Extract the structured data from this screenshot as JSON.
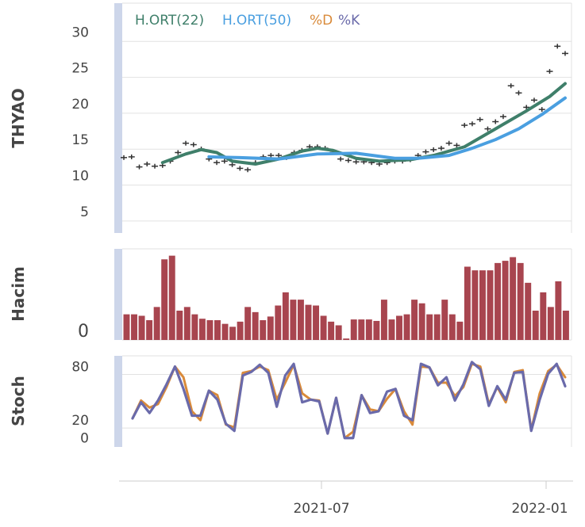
{
  "chart_data": {
    "type": "line",
    "colors": {
      "ma22": "#3f7f6a",
      "ma50": "#4a9fe0",
      "d": "#d98a3a",
      "k": "#6a6aaa",
      "volume": "#a8454f",
      "ohlc": "#333333",
      "scrollbar": "#cdd6ea"
    },
    "x_ticks": [
      "2021-07",
      "2022-01"
    ],
    "price_panel": {
      "ylabel": "THYAO",
      "ylim": [
        2,
        34
      ],
      "y_ticks": [
        5,
        10,
        15,
        20,
        25,
        30
      ],
      "legend": [
        {
          "label": "H.ORT(22)",
          "color": "#3f7f6a"
        },
        {
          "label": "H.ORT(50)",
          "color": "#4a9fe0"
        },
        {
          "label": "%D",
          "color": "#d98a3a"
        },
        {
          "label": "%K",
          "color": "#6a6aaa"
        }
      ],
      "ohlc": [
        {
          "x": 0,
          "y": 12.5
        },
        {
          "x": 1,
          "y": 12.6
        },
        {
          "x": 2,
          "y": 11.2
        },
        {
          "x": 3,
          "y": 11.6
        },
        {
          "x": 4,
          "y": 11.3
        },
        {
          "x": 5,
          "y": 11.4
        },
        {
          "x": 6,
          "y": 12.0
        },
        {
          "x": 7,
          "y": 13.2
        },
        {
          "x": 8,
          "y": 14.5
        },
        {
          "x": 9,
          "y": 14.3
        },
        {
          "x": 10,
          "y": 13.7
        },
        {
          "x": 11,
          "y": 12.3
        },
        {
          "x": 12,
          "y": 11.8
        },
        {
          "x": 13,
          "y": 12.0
        },
        {
          "x": 14,
          "y": 11.5
        },
        {
          "x": 15,
          "y": 11.0
        },
        {
          "x": 16,
          "y": 10.8
        },
        {
          "x": 17,
          "y": 11.8
        },
        {
          "x": 18,
          "y": 12.6
        },
        {
          "x": 19,
          "y": 12.8
        },
        {
          "x": 20,
          "y": 12.8
        },
        {
          "x": 21,
          "y": 12.5
        },
        {
          "x": 22,
          "y": 13.2
        },
        {
          "x": 23,
          "y": 13.5
        },
        {
          "x": 24,
          "y": 14.0
        },
        {
          "x": 25,
          "y": 14.0
        },
        {
          "x": 26,
          "y": 13.8
        },
        {
          "x": 27,
          "y": 13.2
        },
        {
          "x": 28,
          "y": 12.3
        },
        {
          "x": 29,
          "y": 12.1
        },
        {
          "x": 30,
          "y": 11.9
        },
        {
          "x": 31,
          "y": 11.9
        },
        {
          "x": 32,
          "y": 11.8
        },
        {
          "x": 33,
          "y": 11.6
        },
        {
          "x": 34,
          "y": 11.8
        },
        {
          "x": 35,
          "y": 12.0
        },
        {
          "x": 36,
          "y": 12.0
        },
        {
          "x": 37,
          "y": 12.2
        },
        {
          "x": 38,
          "y": 12.8
        },
        {
          "x": 39,
          "y": 13.3
        },
        {
          "x": 40,
          "y": 13.6
        },
        {
          "x": 41,
          "y": 13.8
        },
        {
          "x": 42,
          "y": 14.5
        },
        {
          "x": 43,
          "y": 14.2
        },
        {
          "x": 44,
          "y": 17.0
        },
        {
          "x": 45,
          "y": 17.2
        },
        {
          "x": 46,
          "y": 17.8
        },
        {
          "x": 47,
          "y": 16.5
        },
        {
          "x": 48,
          "y": 17.5
        },
        {
          "x": 49,
          "y": 18.2
        },
        {
          "x": 50,
          "y": 22.5
        },
        {
          "x": 51,
          "y": 21.5
        },
        {
          "x": 52,
          "y": 19.5
        },
        {
          "x": 53,
          "y": 20.5
        },
        {
          "x": 54,
          "y": 19.2
        },
        {
          "x": 55,
          "y": 24.5
        },
        {
          "x": 56,
          "y": 28.0
        },
        {
          "x": 57,
          "y": 27.0
        }
      ],
      "series": [
        {
          "name": "H.ORT(22)",
          "x": [
            5,
            8,
            10,
            12,
            14,
            17,
            20,
            23,
            25,
            27,
            30,
            33,
            37,
            40,
            44,
            48,
            52,
            55,
            57
          ],
          "values": [
            11.8,
            13.0,
            13.6,
            13.2,
            12.0,
            11.6,
            12.3,
            13.4,
            13.8,
            13.5,
            12.4,
            12.0,
            12.2,
            12.8,
            14.0,
            16.5,
            19.0,
            21.0,
            22.8
          ]
        },
        {
          "name": "H.ORT(50)",
          "x": [
            11,
            15,
            20,
            25,
            30,
            35,
            38,
            42,
            45,
            48,
            51,
            54,
            57
          ],
          "values": [
            12.6,
            12.5,
            12.3,
            13.0,
            13.1,
            12.4,
            12.4,
            12.8,
            13.8,
            15.0,
            16.5,
            18.5,
            20.8
          ]
        }
      ]
    },
    "volume_panel": {
      "ylabel": "Hacim",
      "y_ticks": [
        "0"
      ],
      "bars": [
        35,
        35,
        33,
        27,
        45,
        110,
        115,
        40,
        45,
        35,
        29,
        27,
        27,
        22,
        18,
        25,
        45,
        38,
        27,
        32,
        47,
        65,
        55,
        55,
        48,
        47,
        33,
        25,
        20,
        2,
        28,
        28,
        28,
        26,
        55,
        28,
        33,
        35,
        55,
        50,
        35,
        35,
        55,
        35,
        25,
        100,
        95,
        95,
        95,
        105,
        108,
        113,
        105,
        78,
        40,
        65,
        45,
        80,
        40
      ]
    },
    "stoch_panel": {
      "ylabel": "Stoch",
      "ylim": [
        -10,
        92
      ],
      "y_ticks": [
        0,
        20,
        80
      ],
      "series": [
        {
          "name": "%D",
          "values": [
            22,
            42,
            34,
            38,
            57,
            80,
            68,
            30,
            20,
            53,
            48,
            15,
            12,
            73,
            75,
            80,
            76,
            43,
            62,
            82,
            50,
            43,
            42,
            5,
            45,
            0,
            7,
            48,
            32,
            30,
            44,
            55,
            30,
            15,
            80,
            79,
            62,
            62,
            47,
            57,
            83,
            80,
            38,
            57,
            40,
            74,
            76,
            9,
            50,
            75,
            82,
            68
          ]
        },
        {
          "name": "%K",
          "values": [
            22,
            40,
            28,
            42,
            60,
            80,
            55,
            25,
            25,
            53,
            43,
            16,
            8,
            70,
            74,
            82,
            73,
            35,
            70,
            83,
            40,
            43,
            41,
            5,
            45,
            0,
            0,
            48,
            28,
            30,
            52,
            55,
            25,
            20,
            83,
            79,
            59,
            68,
            42,
            60,
            85,
            77,
            36,
            58,
            43,
            73,
            74,
            8,
            43,
            72,
            83,
            58
          ]
        }
      ]
    }
  }
}
